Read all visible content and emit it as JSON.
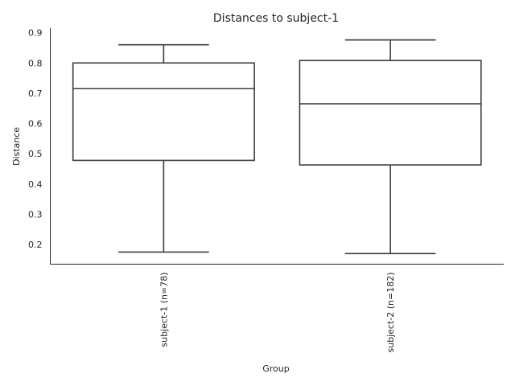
{
  "chart_data": {
    "type": "box",
    "title": "Distances to subject-1",
    "xlabel": "Group",
    "ylabel": "Distance",
    "ylim": [
      0.135,
      0.915
    ],
    "yticks": [
      0.2,
      0.3,
      0.4,
      0.5,
      0.6,
      0.7,
      0.8,
      0.9
    ],
    "ytick_labels": [
      "0.2",
      "0.3",
      "0.4",
      "0.5",
      "0.6",
      "0.7",
      "0.8",
      "0.9"
    ],
    "grid": false,
    "categories": [
      "subject-1 (n=78)",
      "subject-2 (n=182)"
    ],
    "boxes": [
      {
        "whislo": 0.175,
        "q1": 0.478,
        "med": 0.715,
        "q3": 0.8,
        "whishi": 0.86
      },
      {
        "whislo": 0.17,
        "q1": 0.463,
        "med": 0.665,
        "q3": 0.808,
        "whishi": 0.876
      }
    ],
    "colors": {
      "line": "#3d3d3d",
      "box_fill": "#ffffff",
      "axis": "#262626"
    }
  }
}
